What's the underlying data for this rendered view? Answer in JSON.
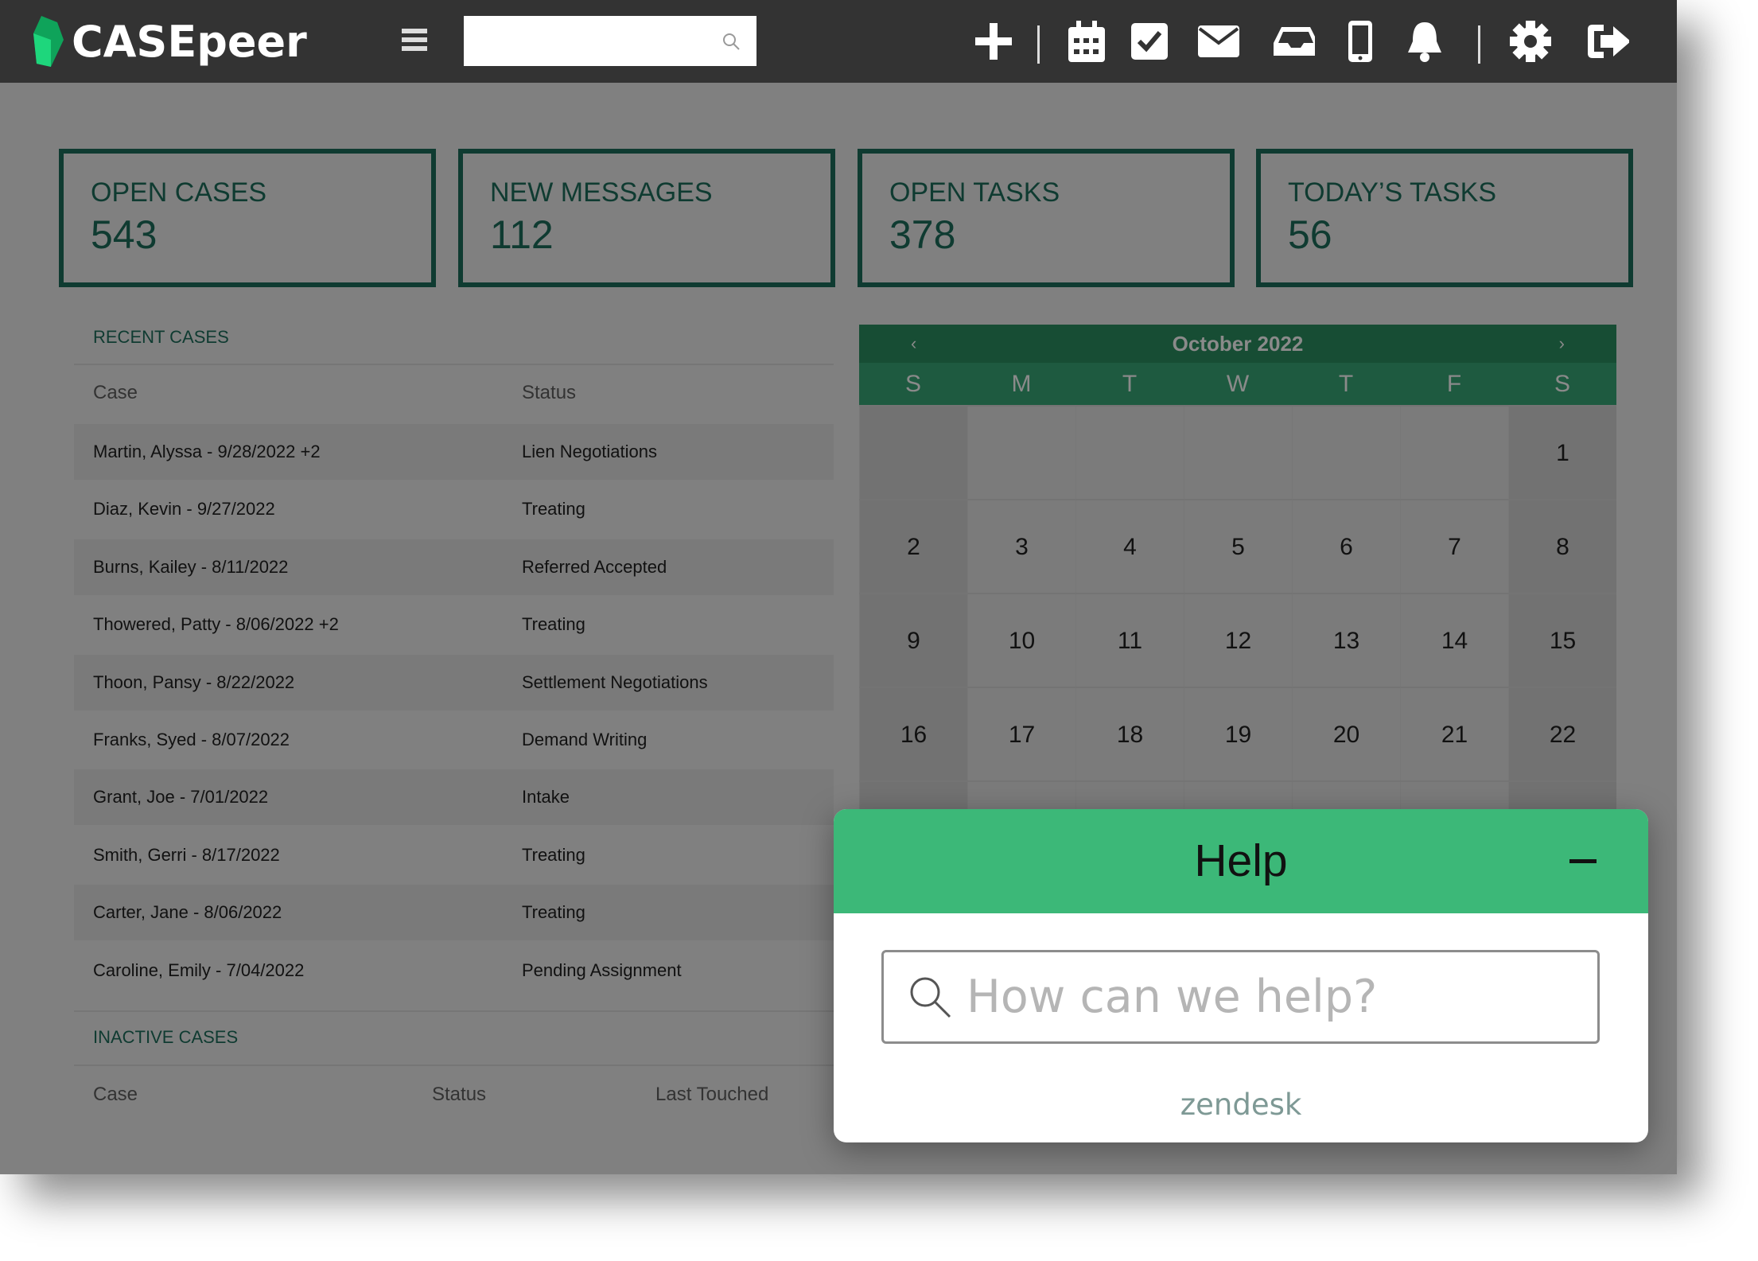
{
  "app": {
    "logo": "CASEpeer",
    "search_placeholder": "",
    "colors": {
      "topbar": "#333333",
      "accent": "#0f3b31",
      "help_green": "#3cb878",
      "calendar_header": "#174d34"
    }
  },
  "toolbar": {
    "icons": [
      "plus-icon",
      "calendar-icon",
      "check-square-icon",
      "mail-icon",
      "inbox-icon",
      "phone-icon",
      "bell-icon",
      "gear-icon",
      "logout-icon"
    ]
  },
  "stats": [
    {
      "label": "OPEN CASES",
      "value": "543"
    },
    {
      "label": "NEW MESSAGES",
      "value": "112"
    },
    {
      "label": "OPEN TASKS",
      "value": "378"
    },
    {
      "label": "TODAY’S TASKS",
      "value": "56"
    }
  ],
  "recent": {
    "title": "RECENT CASES",
    "headers": [
      "Case",
      "Status"
    ],
    "rows": [
      [
        "Martin, Alyssa - 9/28/2022 +2",
        "Lien Negotiations"
      ],
      [
        "Diaz, Kevin - 9/27/2022",
        "Treating"
      ],
      [
        "Burns, Kailey - 8/11/2022",
        "Referred Accepted"
      ],
      [
        "Thowered, Patty - 8/06/2022 +2",
        "Treating"
      ],
      [
        "Thoon, Pansy - 8/22/2022",
        "Settlement Negotiations"
      ],
      [
        "Franks, Syed - 8/07/2022",
        "Demand Writing"
      ],
      [
        "Grant, Joe - 7/01/2022",
        "Intake"
      ],
      [
        "Smith, Gerri - 8/17/2022",
        "Treating"
      ],
      [
        "Carter, Jane - 8/06/2022",
        "Treating"
      ],
      [
        "Caroline, Emily - 7/04/2022",
        "Pending Assignment"
      ]
    ]
  },
  "inactive": {
    "title": "INACTIVE CASES",
    "headers": [
      "Case",
      "Status",
      "Last Touched"
    ]
  },
  "calendar": {
    "month": "October 2022",
    "prev": "‹",
    "next": "›",
    "days": [
      "S",
      "M",
      "T",
      "W",
      "T",
      "F",
      "S"
    ],
    "weeks": [
      [
        "",
        "",
        "",
        "",
        "",
        "",
        "1"
      ],
      [
        "2",
        "3",
        "4",
        "5",
        "6",
        "7",
        "8"
      ],
      [
        "9",
        "10",
        "11",
        "12",
        "13",
        "14",
        "15"
      ],
      [
        "16",
        "17",
        "18",
        "19",
        "20",
        "21",
        "22"
      ]
    ]
  },
  "help": {
    "title": "Help",
    "placeholder": "How can we help?",
    "brand": "zendesk"
  }
}
